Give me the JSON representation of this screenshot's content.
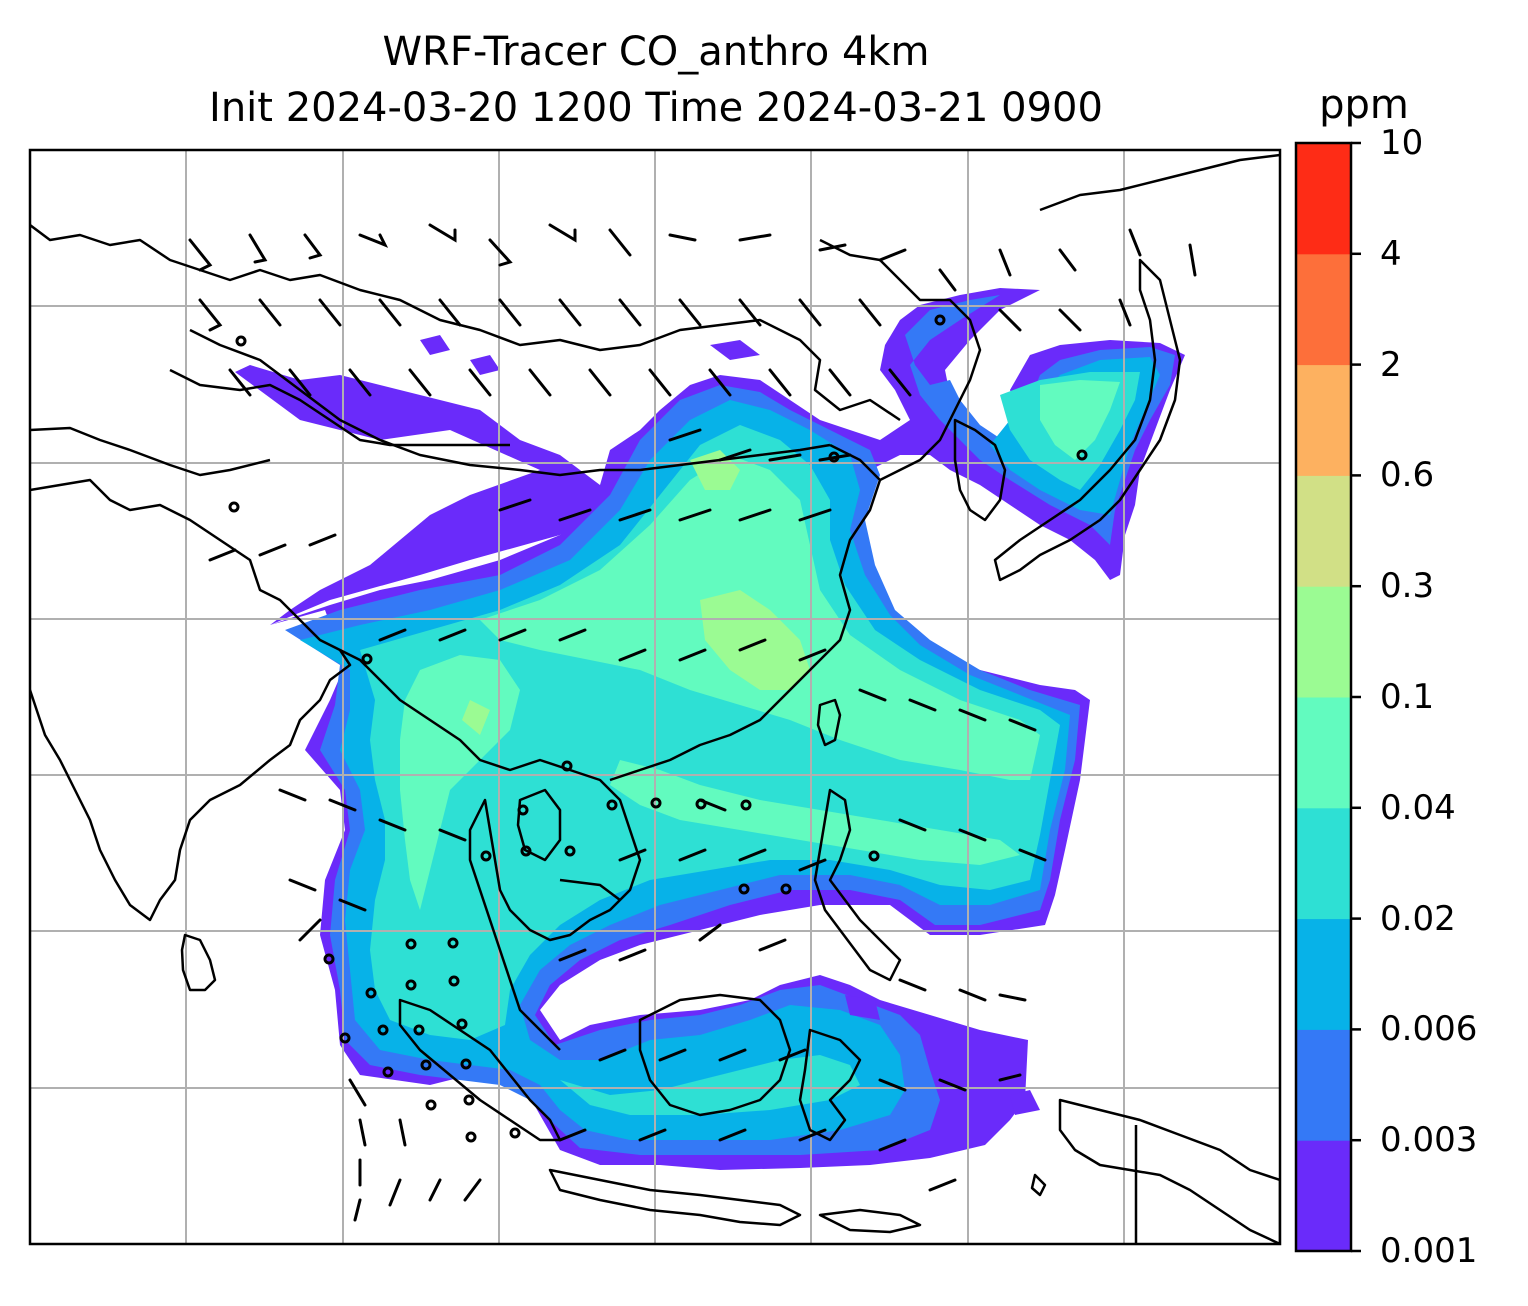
{
  "title": {
    "line1": "WRF-Tracer CO_anthro 4km",
    "line2": "Init 2024-03-20 1200 Time 2024-03-21 0900"
  },
  "colorbar": {
    "unit": "ppm",
    "levels": [
      "0.001",
      "0.003",
      "0.006",
      "0.02",
      "0.04",
      "0.1",
      "0.3",
      "0.6",
      "2",
      "4",
      "10"
    ],
    "colors": [
      "#6a2bfa",
      "#3479f6",
      "#07b2e8",
      "#2ee0d4",
      "#62fbbf",
      "#9bfb93",
      "#d1e086",
      "#fdb160",
      "#fd6f3a",
      "#fe2c16"
    ]
  },
  "map": {
    "gridlines": true,
    "background": "#ffffff",
    "coastline_color": "#000000",
    "gridline_color": "#b0b0b0"
  }
}
